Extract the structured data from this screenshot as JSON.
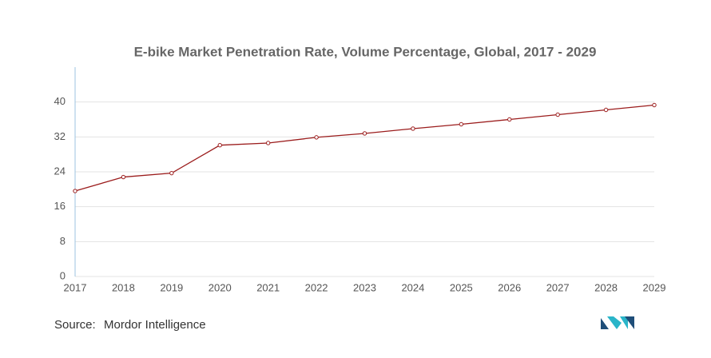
{
  "chart_data": {
    "type": "line",
    "title": "E-bike Market Penetration Rate, Volume Percentage, Global, 2017 - 2029",
    "x": [
      2017,
      2018,
      2019,
      2020,
      2021,
      2022,
      2023,
      2024,
      2025,
      2026,
      2027,
      2028,
      2029
    ],
    "series": [
      {
        "name": "Penetration Rate",
        "color": "#9b1c1c",
        "values": [
          19.6,
          22.8,
          23.7,
          30.1,
          30.6,
          31.9,
          32.8,
          33.9,
          34.9,
          36.0,
          37.1,
          38.2,
          39.3
        ]
      }
    ],
    "xlim": [
      2017,
      2029
    ],
    "xticks": [
      2017,
      2018,
      2019,
      2020,
      2021,
      2022,
      2023,
      2024,
      2025,
      2026,
      2027,
      2028,
      2029
    ],
    "ylim": [
      0,
      48
    ],
    "yticks": [
      0,
      8,
      16,
      24,
      32,
      40
    ],
    "grid": true,
    "source_label": "Source:",
    "source": "Mordor Intelligence"
  }
}
